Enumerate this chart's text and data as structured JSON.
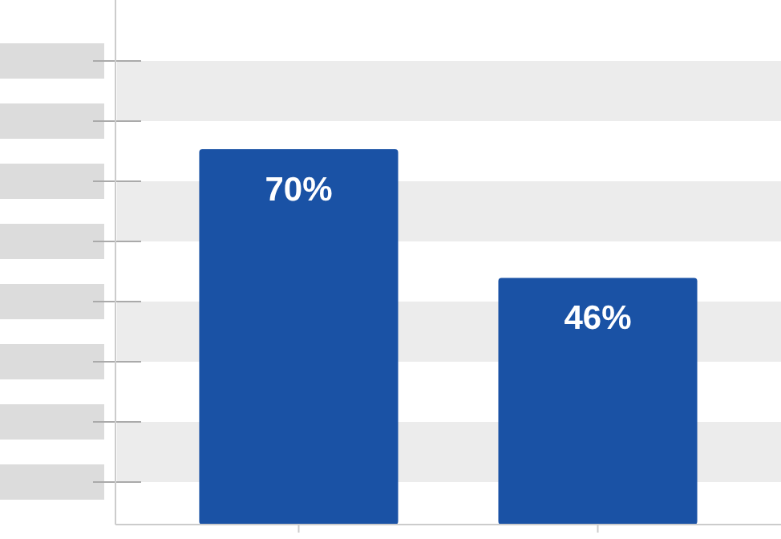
{
  "chart_data": {
    "type": "bar",
    "categories": [
      null,
      null
    ],
    "values": [
      70,
      46
    ],
    "value_labels": [
      "70%",
      "46%"
    ],
    "color": "#1a52a5"
  }
}
